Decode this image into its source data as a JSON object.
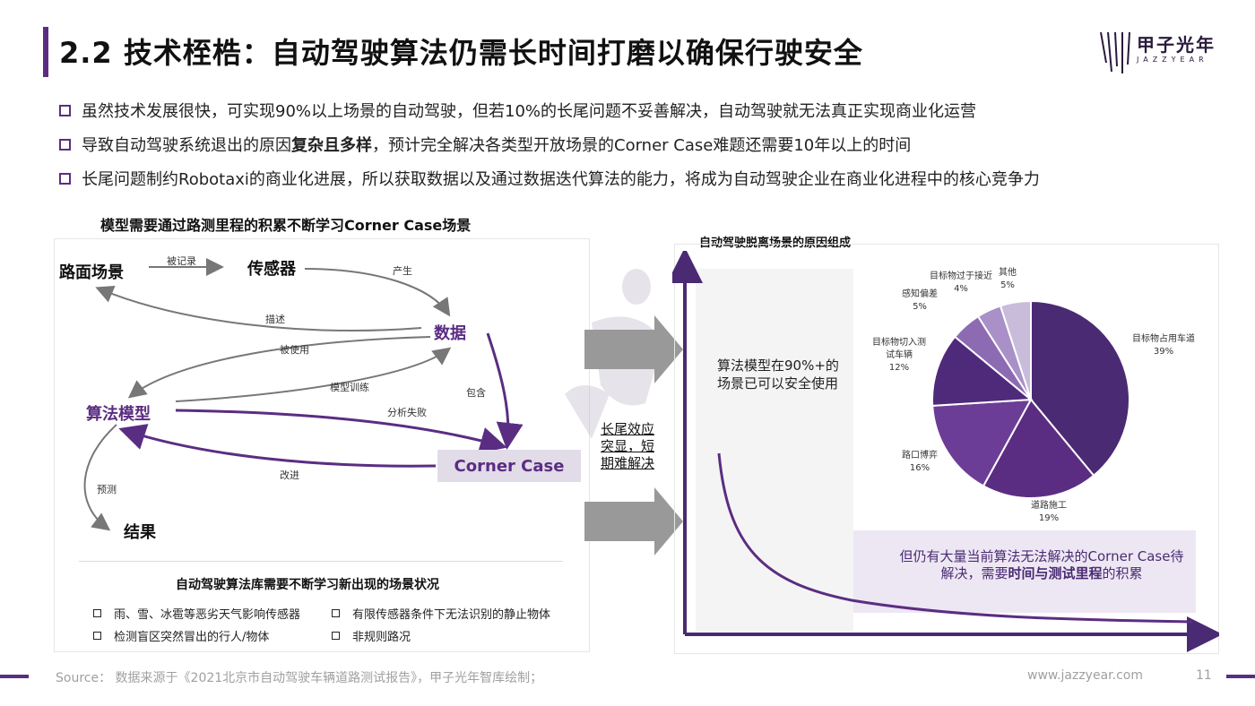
{
  "header": {
    "title": "2.2 技术桎梏：自动驾驶算法仍需长时间打磨以确保行驶安全",
    "logo_cn": "甲子光年",
    "logo_en": "JAZZYEAR"
  },
  "bullets": [
    {
      "pre": "虽然技术发展很快，可实现90%以上场景的自动驾驶，但若10%的长尾问题不妥善解决，自动驾驶就无法真正实现商业化运营",
      "bold": "",
      "post": ""
    },
    {
      "pre": "导致自动驾驶系统退出的原因",
      "bold": "复杂且多样",
      "post": "，预计完全解决各类型开放场景的Corner Case难题还需要10年以上的时间"
    },
    {
      "pre": "长尾问题制约Robotaxi的商业化进展，所以获取数据以及通过数据迭代算法的能力，将成为自动驾驶企业在商业化进程中的核心竞争力",
      "bold": "",
      "post": ""
    }
  ],
  "left": {
    "title": "模型需要通过路测里程的积累不断学习Corner Case场景",
    "nodes": {
      "road": "路面场景",
      "sensor": "传感器",
      "data": "数据",
      "algo": "算法模型",
      "result": "结果",
      "corner": "Corner Case"
    },
    "edges": {
      "recorded": "被记录",
      "produce": "产生",
      "describe": "描述",
      "used": "被使用",
      "train": "模型训练",
      "contain": "包含",
      "fail": "分析失败",
      "improve": "改进",
      "predict": "预测"
    },
    "library_title": "自动驾驶算法库需要不断学习新出现的场景状况",
    "library_items": [
      "雨、雪、冰雹等恶劣天气影响传感器",
      "有限传感器条件下无法识别的静止物体",
      "检测盲区突然冒出的行人/物体",
      "非规则路况"
    ]
  },
  "middle": {
    "tail_text": "长尾效应突显，短期难解决"
  },
  "right": {
    "title": "自动驾驶脱离场景的原因组成",
    "safe_text": "算法模型在90%+的场景已可以安全使用",
    "bottom_pre": "但仍有大量当前算法无法解决的Corner Case待解决，需要",
    "bottom_bold": "时间与测试里程",
    "bottom_post": "的积累"
  },
  "chart_data": {
    "type": "pie",
    "title": "自动驾驶脱离场景的原因组成",
    "slices": [
      {
        "label": "目标物占用车道",
        "value": 39,
        "pct": "39%",
        "color": "#4a2a73"
      },
      {
        "label": "道路施工",
        "value": 19,
        "pct": "19%",
        "color": "#5b2d82"
      },
      {
        "label": "路口博弈",
        "value": 16,
        "pct": "16%",
        "color": "#6c3d96"
      },
      {
        "label": "目标物切入测试车辆",
        "value": 12,
        "pct": "12%",
        "color": "#4f2a7a"
      },
      {
        "label": "感知偏差",
        "value": 5,
        "pct": "5%",
        "color": "#8c6bb3"
      },
      {
        "label": "目标物过于接近",
        "value": 4,
        "pct": "4%",
        "color": "#a990c8"
      },
      {
        "label": "其他",
        "value": 5,
        "pct": "5%",
        "color": "#c9bcdb"
      }
    ]
  },
  "footer": {
    "source": "Source： 数据来源于《2021北京市自动驾驶车辆道路测试报告》，甲子光年智库绘制；",
    "url": "www.jazzyear.com",
    "page": "11"
  },
  "colors": {
    "accent": "#5b2d82",
    "gray_text": "#a0a0a0"
  }
}
